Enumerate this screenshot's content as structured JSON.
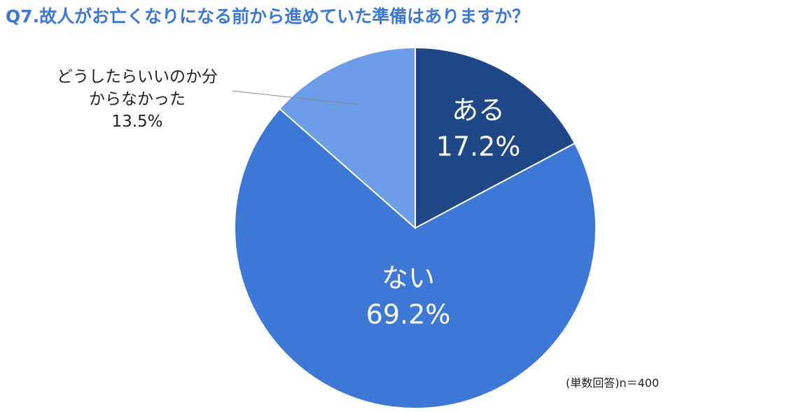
{
  "chart_data": {
    "type": "pie",
    "title": "Q7.故人がお亡くなりになる前から進めていた準備はありますか？",
    "categories": [
      "ある",
      "ない",
      "どうしたらいいのか分からなかった"
    ],
    "values": [
      17.2,
      69.2,
      13.5
    ],
    "value_labels": [
      "17.2%",
      "69.2%",
      "13.5%"
    ],
    "colors": [
      "#1f4788",
      "#3d78d6",
      "#6d9ce8"
    ],
    "note": "(単数回答)n＝400"
  }
}
